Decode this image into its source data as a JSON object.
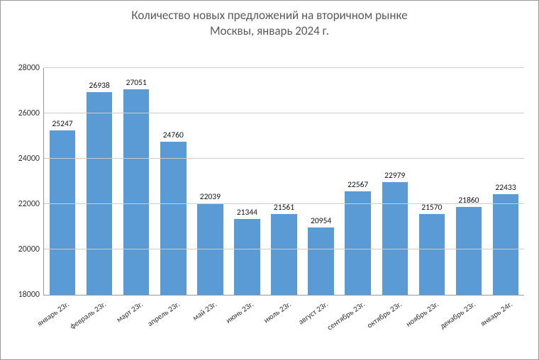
{
  "chart": {
    "type": "bar",
    "title_line1": "Количество новых предложений на вторичном рынке",
    "title_line2": "Москвы, январь 2024 г.",
    "title_fontsize": 17,
    "title_color": "#595959",
    "categories": [
      "январь 23г.",
      "февраль 23г.",
      "март 23г.",
      "апрель 23г.",
      "май 23г.",
      "июнь 23г.",
      "июль 23г.",
      "август 23г.",
      "сентябрь 23г.",
      "октябрь 23г.",
      "ноябрь 23г.",
      "декабрь 23г.",
      "январь 24г."
    ],
    "values": [
      25247,
      26938,
      27051,
      24760,
      22039,
      21344,
      21561,
      20954,
      22567,
      22979,
      21570,
      21860,
      22433
    ],
    "bar_color": "#5b9bd5",
    "bar_width": 0.7,
    "ylim": [
      18000,
      28000
    ],
    "ytick_step": 2000,
    "yticks": [
      18000,
      20000,
      22000,
      24000,
      26000,
      28000
    ],
    "axis_color": "#999999",
    "grid_color": "#cccccc",
    "label_fontsize": 12,
    "datalabel_fontsize": 11.5,
    "xtick_fontsize": 11,
    "xtick_rotation_deg": -35,
    "background_color": "#ffffff"
  }
}
